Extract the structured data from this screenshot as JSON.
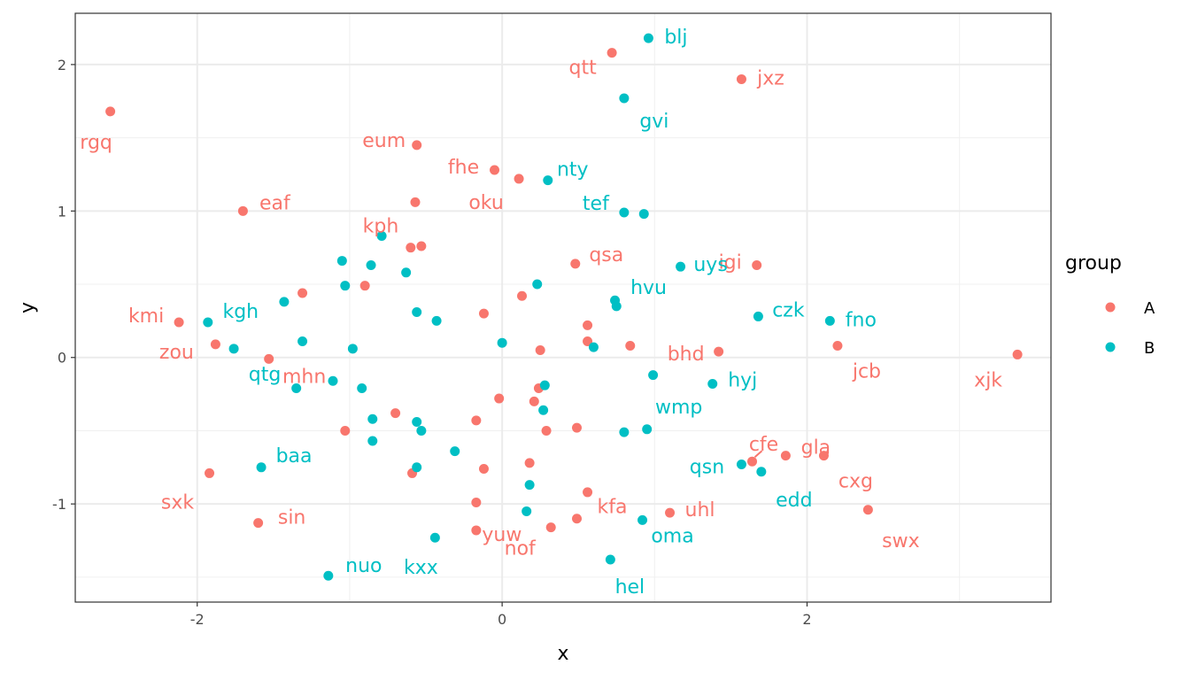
{
  "chart_data": {
    "type": "scatter",
    "title": "",
    "xlabel": "x",
    "ylabel": "y",
    "xlim": [
      -2.8,
      3.6
    ],
    "ylim": [
      -1.67,
      2.35
    ],
    "x_ticks": [
      -2,
      0,
      2
    ],
    "x_tick_labels": [
      "-2",
      "0",
      "2"
    ],
    "y_ticks": [
      -1,
      0,
      1,
      2
    ],
    "y_tick_labels": [
      "-1",
      "0",
      "1",
      "2"
    ],
    "grid": true,
    "legend": {
      "title": "group",
      "position": "right",
      "entries": [
        {
          "key": "A",
          "label": "A",
          "color": "#F8766D"
        },
        {
          "key": "B",
          "label": "B",
          "color": "#00BFC4"
        }
      ]
    },
    "series": [
      {
        "name": "A",
        "color": "#F8766D",
        "points": [
          {
            "x": 0.72,
            "y": 2.08,
            "label": "qtt"
          },
          {
            "x": 1.57,
            "y": 1.9,
            "label": "jxz"
          },
          {
            "x": -2.57,
            "y": 1.68,
            "label": "rgq"
          },
          {
            "x": -0.56,
            "y": 1.45,
            "label": "eum"
          },
          {
            "x": -0.05,
            "y": 1.28,
            "label": "fhe"
          },
          {
            "x": 0.11,
            "y": 1.22,
            "label": "oku"
          },
          {
            "x": -1.7,
            "y": 1.0,
            "label": "eaf"
          },
          {
            "x": -0.57,
            "y": 1.06,
            "label": "kph"
          },
          {
            "x": -0.6,
            "y": 0.75,
            "label": ""
          },
          {
            "x": -0.53,
            "y": 0.76,
            "label": ""
          },
          {
            "x": 0.48,
            "y": 0.64,
            "label": "qsa"
          },
          {
            "x": 1.67,
            "y": 0.63,
            "label": "igi"
          },
          {
            "x": -1.31,
            "y": 0.44,
            "label": ""
          },
          {
            "x": -0.9,
            "y": 0.49,
            "label": ""
          },
          {
            "x": 0.13,
            "y": 0.42,
            "label": ""
          },
          {
            "x": -0.12,
            "y": 0.3,
            "label": ""
          },
          {
            "x": -2.12,
            "y": 0.24,
            "label": "kmi"
          },
          {
            "x": 0.56,
            "y": 0.22,
            "label": ""
          },
          {
            "x": 0.56,
            "y": 0.11,
            "label": ""
          },
          {
            "x": 0.84,
            "y": 0.08,
            "label": ""
          },
          {
            "x": 1.42,
            "y": 0.04,
            "label": "bhd"
          },
          {
            "x": -1.88,
            "y": 0.09,
            "label": "zou"
          },
          {
            "x": 0.25,
            "y": 0.05,
            "label": ""
          },
          {
            "x": 2.2,
            "y": 0.08,
            "label": "jcb"
          },
          {
            "x": 3.38,
            "y": 0.02,
            "label": "xjk"
          },
          {
            "x": -1.53,
            "y": -0.01,
            "label": "mhn"
          },
          {
            "x": 0.24,
            "y": -0.21,
            "label": ""
          },
          {
            "x": -0.02,
            "y": -0.28,
            "label": ""
          },
          {
            "x": 0.21,
            "y": -0.3,
            "label": ""
          },
          {
            "x": -0.7,
            "y": -0.38,
            "label": ""
          },
          {
            "x": -0.17,
            "y": -0.43,
            "label": ""
          },
          {
            "x": -1.03,
            "y": -0.5,
            "label": ""
          },
          {
            "x": 0.29,
            "y": -0.5,
            "label": ""
          },
          {
            "x": 0.49,
            "y": -0.48,
            "label": ""
          },
          {
            "x": 1.86,
            "y": -0.67,
            "label": "gla"
          },
          {
            "x": 2.11,
            "y": -0.67,
            "label": "cxg"
          },
          {
            "x": 1.64,
            "y": -0.71,
            "label": "cfe"
          },
          {
            "x": 0.18,
            "y": -0.72,
            "label": ""
          },
          {
            "x": -0.12,
            "y": -0.76,
            "label": ""
          },
          {
            "x": -0.59,
            "y": -0.79,
            "label": ""
          },
          {
            "x": -1.92,
            "y": -0.79,
            "label": "sxk"
          },
          {
            "x": 0.56,
            "y": -0.92,
            "label": ""
          },
          {
            "x": -0.17,
            "y": -0.99,
            "label": ""
          },
          {
            "x": 1.1,
            "y": -1.06,
            "label": "uhl"
          },
          {
            "x": 0.49,
            "y": -1.1,
            "label": "kfa"
          },
          {
            "x": 2.4,
            "y": -1.04,
            "label": "swx"
          },
          {
            "x": -1.6,
            "y": -1.13,
            "label": "sin"
          },
          {
            "x": -0.17,
            "y": -1.18,
            "label": "yuw"
          },
          {
            "x": 0.32,
            "y": -1.16,
            "label": "nof"
          }
        ]
      },
      {
        "name": "B",
        "color": "#00BFC4",
        "points": [
          {
            "x": 0.96,
            "y": 2.18,
            "label": "blj"
          },
          {
            "x": 0.8,
            "y": 1.77,
            "label": "gvi"
          },
          {
            "x": 0.3,
            "y": 1.21,
            "label": "nty"
          },
          {
            "x": 0.8,
            "y": 0.99,
            "label": "tef"
          },
          {
            "x": 0.93,
            "y": 0.98,
            "label": ""
          },
          {
            "x": -0.79,
            "y": 0.83,
            "label": ""
          },
          {
            "x": 1.17,
            "y": 0.62,
            "label": "uys"
          },
          {
            "x": -1.05,
            "y": 0.66,
            "label": ""
          },
          {
            "x": -0.86,
            "y": 0.63,
            "label": ""
          },
          {
            "x": -0.63,
            "y": 0.58,
            "label": ""
          },
          {
            "x": -1.03,
            "y": 0.49,
            "label": ""
          },
          {
            "x": 0.23,
            "y": 0.5,
            "label": ""
          },
          {
            "x": 0.74,
            "y": 0.39,
            "label": "hvu"
          },
          {
            "x": 0.75,
            "y": 0.35,
            "label": ""
          },
          {
            "x": -1.43,
            "y": 0.38,
            "label": ""
          },
          {
            "x": -0.56,
            "y": 0.31,
            "label": ""
          },
          {
            "x": -0.43,
            "y": 0.25,
            "label": ""
          },
          {
            "x": 1.68,
            "y": 0.28,
            "label": "czk"
          },
          {
            "x": 2.15,
            "y": 0.25,
            "label": "fno"
          },
          {
            "x": -1.93,
            "y": 0.24,
            "label": "kgh"
          },
          {
            "x": -1.31,
            "y": 0.11,
            "label": ""
          },
          {
            "x": 0.0,
            "y": 0.1,
            "label": ""
          },
          {
            "x": -1.76,
            "y": 0.06,
            "label": "qtg"
          },
          {
            "x": -0.98,
            "y": 0.06,
            "label": ""
          },
          {
            "x": 0.6,
            "y": 0.07,
            "label": ""
          },
          {
            "x": 0.99,
            "y": -0.12,
            "label": ""
          },
          {
            "x": 1.38,
            "y": -0.18,
            "label": "hyj"
          },
          {
            "x": -1.11,
            "y": -0.16,
            "label": ""
          },
          {
            "x": -1.35,
            "y": -0.21,
            "label": ""
          },
          {
            "x": -0.92,
            "y": -0.21,
            "label": ""
          },
          {
            "x": 0.28,
            "y": -0.19,
            "label": ""
          },
          {
            "x": 0.27,
            "y": -0.36,
            "label": ""
          },
          {
            "x": -0.85,
            "y": -0.42,
            "label": ""
          },
          {
            "x": -0.56,
            "y": -0.44,
            "label": ""
          },
          {
            "x": -0.53,
            "y": -0.5,
            "label": ""
          },
          {
            "x": 0.95,
            "y": -0.49,
            "label": "wmp"
          },
          {
            "x": 0.8,
            "y": -0.51,
            "label": ""
          },
          {
            "x": -0.85,
            "y": -0.57,
            "label": ""
          },
          {
            "x": -0.31,
            "y": -0.64,
            "label": ""
          },
          {
            "x": -1.58,
            "y": -0.75,
            "label": "baa"
          },
          {
            "x": -0.56,
            "y": -0.75,
            "label": ""
          },
          {
            "x": 1.57,
            "y": -0.73,
            "label": "qsn"
          },
          {
            "x": 1.7,
            "y": -0.78,
            "label": "edd"
          },
          {
            "x": 0.18,
            "y": -0.87,
            "label": ""
          },
          {
            "x": 0.16,
            "y": -1.05,
            "label": ""
          },
          {
            "x": 0.92,
            "y": -1.11,
            "label": "oma"
          },
          {
            "x": -0.44,
            "y": -1.23,
            "label": "kxx"
          },
          {
            "x": 0.71,
            "y": -1.38,
            "label": "hel"
          },
          {
            "x": -1.14,
            "y": -1.49,
            "label": "nuo"
          }
        ]
      }
    ]
  }
}
